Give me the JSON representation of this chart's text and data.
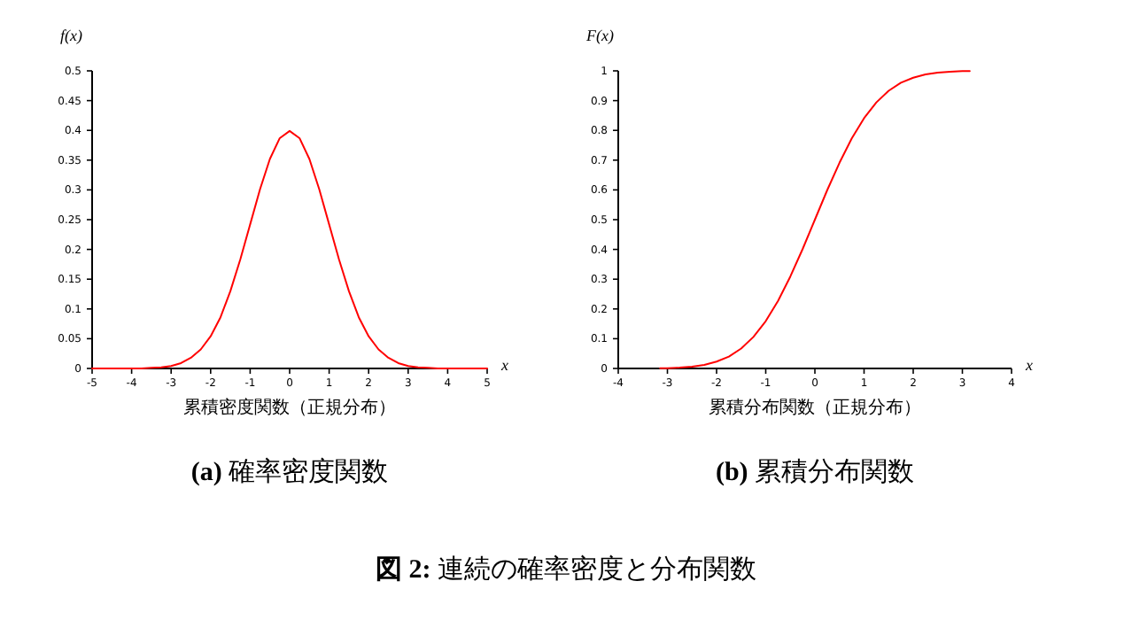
{
  "chart_data": [
    {
      "type": "line",
      "xlabel": "x",
      "ylabel": "f(x)",
      "xlim": [
        -5,
        5
      ],
      "ylim": [
        0,
        0.5
      ],
      "xticks": [
        -5,
        -4,
        -3,
        -2,
        -1,
        0,
        1,
        2,
        3,
        4,
        5
      ],
      "yticks": [
        0,
        0.05,
        0.1,
        0.15,
        0.2,
        0.25,
        0.3,
        0.35,
        0.4,
        0.45,
        0.5
      ],
      "color": "#ff0000",
      "x": [
        -5,
        -4.5,
        -4,
        -3.75,
        -3.5,
        -3.25,
        -3,
        -2.75,
        -2.5,
        -2.25,
        -2,
        -1.75,
        -1.5,
        -1.25,
        -1,
        -0.75,
        -0.5,
        -0.25,
        0,
        0.25,
        0.5,
        0.75,
        1,
        1.25,
        1.5,
        1.75,
        2,
        2.25,
        2.5,
        2.75,
        3,
        3.25,
        3.5,
        3.75,
        4,
        4.5,
        5
      ],
      "values": [
        0,
        0,
        0,
        0,
        0.001,
        0.002,
        0.004,
        0.009,
        0.018,
        0.032,
        0.054,
        0.086,
        0.13,
        0.183,
        0.242,
        0.301,
        0.352,
        0.387,
        0.399,
        0.387,
        0.352,
        0.301,
        0.242,
        0.183,
        0.13,
        0.086,
        0.054,
        0.032,
        0.018,
        0.009,
        0.004,
        0.002,
        0.001,
        0,
        0,
        0,
        0
      ],
      "annotations": [
        "累積密度関数（正規分布）",
        "**(a)** 確率密度関数",
        "**図 2:** 連続の確率密度と分布関数"
      ]
    },
    {
      "type": "line",
      "xlabel": "x",
      "ylabel": "F(x)",
      "xlim": [
        -4,
        4
      ],
      "ylim": [
        0,
        1
      ],
      "xticks": [
        -4,
        -3,
        -2,
        -1,
        0,
        1,
        2,
        3,
        4
      ],
      "yticks": [
        0,
        0.1,
        0.2,
        0.3,
        0.4,
        0.5,
        0.6,
        0.7,
        0.8,
        0.9,
        1
      ],
      "color": "#ff0000",
      "x": [
        -3.15,
        -3,
        -2.75,
        -2.5,
        -2.25,
        -2,
        -1.75,
        -1.5,
        -1.25,
        -1,
        -0.75,
        -0.5,
        -0.25,
        0,
        0.25,
        0.5,
        0.75,
        1,
        1.25,
        1.5,
        1.75,
        2,
        2.25,
        2.5,
        2.75,
        3,
        3.15
      ],
      "values": [
        0.001,
        0.001,
        0.003,
        0.006,
        0.012,
        0.023,
        0.04,
        0.067,
        0.106,
        0.159,
        0.227,
        0.309,
        0.401,
        0.5,
        0.599,
        0.691,
        0.773,
        0.841,
        0.894,
        0.933,
        0.96,
        0.977,
        0.988,
        0.994,
        0.997,
        0.999,
        0.999
      ],
      "annotations": [
        "累積分布関数（正規分布）",
        "**(b)** 累積分布関数"
      ]
    }
  ]
}
